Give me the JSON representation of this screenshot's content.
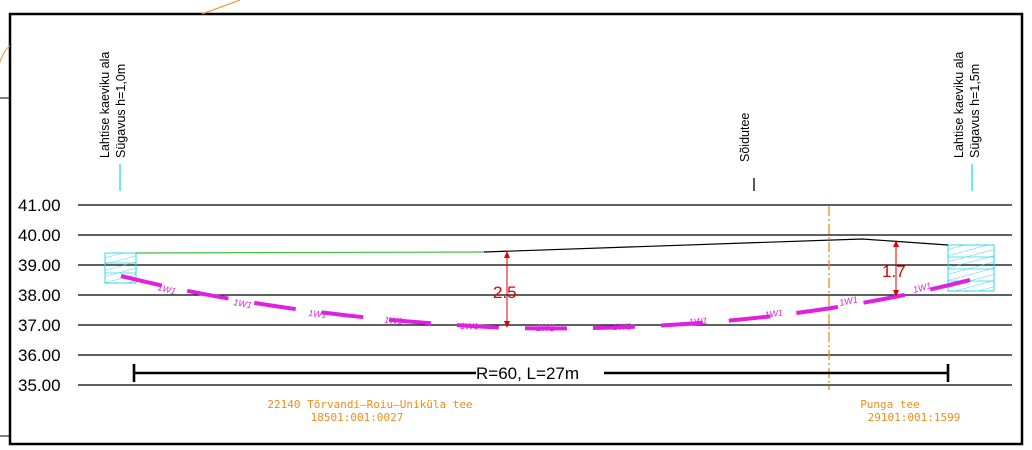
{
  "elevations": [
    "41.00",
    "40.00",
    "39.00",
    "38.00",
    "37.00",
    "36.00",
    "35.00"
  ],
  "labels": {
    "left_line1": "Lahtise kaeviku ala",
    "left_line2": "Sügavus h=1,0m",
    "right_line1": "Lahtise kaeviku ala",
    "right_line2": "Sügavus h=1,5m",
    "road": "Sõidutee"
  },
  "pipe": {
    "label": "1W1"
  },
  "dimensions": {
    "left_depth": "2.5",
    "right_depth": "1.7"
  },
  "curve": {
    "label": "R=60, L=27m"
  },
  "roads": {
    "left_name": "22140  Tõrvandi—Roiu—Uniküla  tee",
    "left_code": "18501:001:0027",
    "right_name": "Punga  tee",
    "right_code": "29101:001:1599"
  },
  "colors": {
    "pipe": "#e020e0",
    "dimension": "#e00000",
    "cyan": "#28d8e8",
    "ground_green": "#40c040",
    "orange": "#f08c18"
  }
}
